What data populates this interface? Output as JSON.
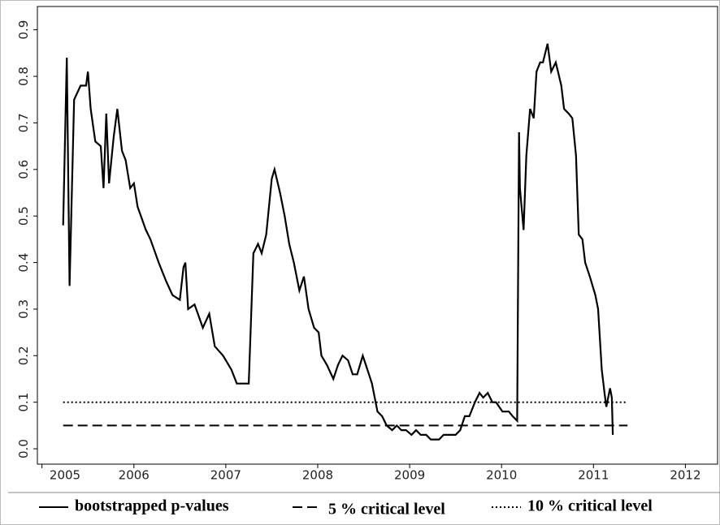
{
  "chart_data": {
    "type": "line",
    "xlim": [
      2004.95,
      2012.35
    ],
    "xticks": [
      2005,
      2006,
      2007,
      2008,
      2009,
      2010,
      2011,
      2012
    ],
    "ylim": [
      -0.033,
      0.95
    ],
    "yticks": [
      {
        "value": 0,
        "label": "0.0"
      },
      0.1,
      0.2,
      0.3,
      0.4,
      0.5,
      0.6,
      0.7,
      0.8,
      0.9
    ],
    "series": [
      {
        "name": "bootstrapped p-values",
        "color": "#000000",
        "dash": "solid",
        "x": [
          2005.23,
          2005.27,
          2005.3,
          2005.35,
          2005.42,
          2005.48,
          2005.5,
          2005.53,
          2005.58,
          2005.64,
          2005.67,
          2005.7,
          2005.73,
          2005.78,
          2005.82,
          2005.87,
          2005.91,
          2005.96,
          2006.0,
          2006.04,
          2006.13,
          2006.18,
          2006.27,
          2006.35,
          2006.42,
          2006.5,
          2006.54,
          2006.56,
          2006.59,
          2006.66,
          2006.75,
          2006.82,
          2006.88,
          2006.97,
          2007.06,
          2007.12,
          2007.19,
          2007.25,
          2007.3,
          2007.35,
          2007.39,
          2007.44,
          2007.5,
          2007.53,
          2007.59,
          2007.64,
          2007.69,
          2007.74,
          2007.8,
          2007.85,
          2007.9,
          2007.96,
          2008.01,
          2008.04,
          2008.1,
          2008.17,
          2008.22,
          2008.27,
          2008.33,
          2008.38,
          2008.43,
          2008.49,
          2008.54,
          2008.59,
          2008.65,
          2008.7,
          2008.75,
          2008.81,
          2008.86,
          2008.91,
          2008.96,
          2009.02,
          2009.07,
          2009.12,
          2009.18,
          2009.23,
          2009.32,
          2009.37,
          2009.42,
          2009.5,
          2009.55,
          2009.6,
          2009.65,
          2009.71,
          2009.76,
          2009.8,
          2009.85,
          2009.9,
          2009.94,
          2010.01,
          2010.08,
          2010.12,
          2010.17,
          2010.19,
          2010.2,
          2010.24,
          2010.27,
          2010.31,
          2010.35,
          2010.38,
          2010.42,
          2010.45,
          2010.5,
          2010.54,
          2010.59,
          2010.65,
          2010.68,
          2010.73,
          2010.77,
          2010.81,
          2010.84,
          2010.88,
          2010.91,
          2010.96,
          2011.02,
          2011.05,
          2011.09,
          2011.12,
          2011.14,
          2011.18,
          2011.2,
          2011.21
        ],
        "values": [
          0.48,
          0.84,
          0.35,
          0.75,
          0.78,
          0.78,
          0.81,
          0.73,
          0.66,
          0.65,
          0.56,
          0.72,
          0.57,
          0.67,
          0.73,
          0.64,
          0.62,
          0.56,
          0.57,
          0.52,
          0.47,
          0.45,
          0.4,
          0.36,
          0.33,
          0.32,
          0.39,
          0.4,
          0.3,
          0.31,
          0.26,
          0.29,
          0.22,
          0.2,
          0.17,
          0.14,
          0.14,
          0.14,
          0.42,
          0.44,
          0.42,
          0.46,
          0.58,
          0.6,
          0.55,
          0.5,
          0.44,
          0.4,
          0.34,
          0.37,
          0.3,
          0.26,
          0.25,
          0.2,
          0.18,
          0.15,
          0.18,
          0.2,
          0.19,
          0.16,
          0.16,
          0.2,
          0.17,
          0.14,
          0.08,
          0.07,
          0.05,
          0.04,
          0.05,
          0.04,
          0.04,
          0.03,
          0.04,
          0.03,
          0.03,
          0.02,
          0.02,
          0.03,
          0.03,
          0.03,
          0.04,
          0.07,
          0.07,
          0.1,
          0.12,
          0.11,
          0.12,
          0.1,
          0.1,
          0.08,
          0.08,
          0.07,
          0.06,
          0.68,
          0.56,
          0.47,
          0.63,
          0.73,
          0.71,
          0.81,
          0.83,
          0.83,
          0.87,
          0.81,
          0.83,
          0.78,
          0.73,
          0.72,
          0.71,
          0.63,
          0.46,
          0.45,
          0.4,
          0.37,
          0.33,
          0.3,
          0.17,
          0.12,
          0.09,
          0.13,
          0.11,
          0.03
        ]
      },
      {
        "name": "5 % critical level",
        "color": "#000000",
        "dash": "dashed",
        "x": [
          2005.23,
          2011.37
        ],
        "values": [
          0.05,
          0.05
        ]
      },
      {
        "name": "10 % critical level",
        "color": "#000000",
        "dash": "dotted",
        "x": [
          2005.23,
          2011.37
        ],
        "values": [
          0.1,
          0.1
        ]
      }
    ],
    "legend": "bottom"
  }
}
